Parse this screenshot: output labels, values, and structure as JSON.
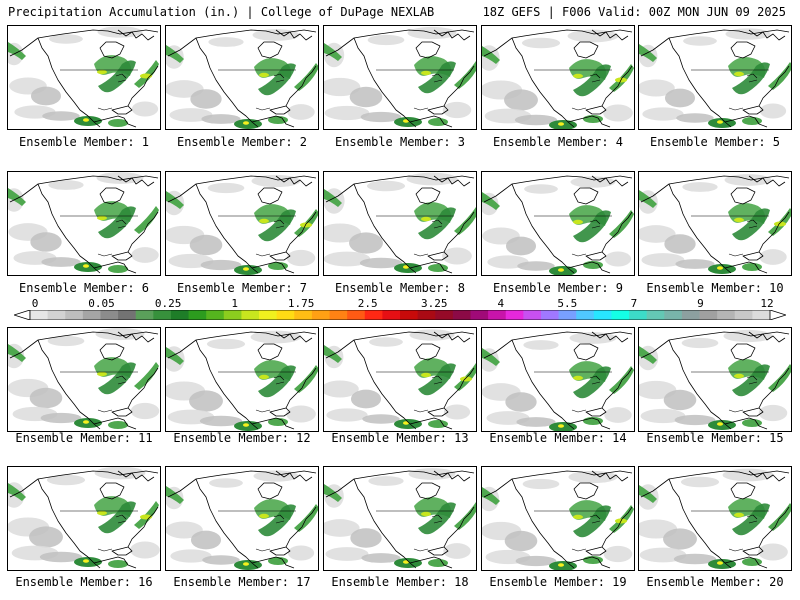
{
  "header": {
    "left_title": "Precipitation Accumulation (in.) | College of DuPage NEXLAB",
    "right_title": "18Z GEFS | F006 Valid: 00Z MON JUN 09 2025"
  },
  "members": [
    {
      "caption": "Ensemble Member: 1"
    },
    {
      "caption": "Ensemble Member: 2"
    },
    {
      "caption": "Ensemble Member: 3"
    },
    {
      "caption": "Ensemble Member: 4"
    },
    {
      "caption": "Ensemble Member: 5"
    },
    {
      "caption": "Ensemble Member: 6"
    },
    {
      "caption": "Ensemble Member: 7"
    },
    {
      "caption": "Ensemble Member: 8"
    },
    {
      "caption": "Ensemble Member: 9"
    },
    {
      "caption": "Ensemble Member: 10"
    },
    {
      "caption": "Ensemble Member: 11"
    },
    {
      "caption": "Ensemble Member: 12"
    },
    {
      "caption": "Ensemble Member: 13"
    },
    {
      "caption": "Ensemble Member: 14"
    },
    {
      "caption": "Ensemble Member: 15"
    },
    {
      "caption": "Ensemble Member: 16"
    },
    {
      "caption": "Ensemble Member: 17"
    },
    {
      "caption": "Ensemble Member: 18"
    },
    {
      "caption": "Ensemble Member: 19"
    },
    {
      "caption": "Ensemble Member: 20"
    }
  ],
  "colorbar": {
    "labels": [
      "0",
      "0.05",
      "0.25",
      "1",
      "1.75",
      "2.5",
      "3.25",
      "4",
      "5.5",
      "7",
      "9",
      "12"
    ],
    "colors": [
      "#e6e6e6",
      "#d2d2d2",
      "#bebebe",
      "#a5a5a5",
      "#8c8c8c",
      "#737373",
      "#5aa05a",
      "#37913c",
      "#1e7d28",
      "#2c9c1e",
      "#55b41e",
      "#8ccd1e",
      "#c8e61e",
      "#f0f01e",
      "#ffdc14",
      "#ffbe14",
      "#ffa014",
      "#ff8214",
      "#ff5a14",
      "#ff2814",
      "#e60f14",
      "#c80a0a",
      "#aa0a14",
      "#960a28",
      "#8c0a46",
      "#a00a78",
      "#c814aa",
      "#e628dc",
      "#c850f0",
      "#a078ff",
      "#78a0ff",
      "#50c8ff",
      "#28e6ff",
      "#14ffe6",
      "#3cdcc8",
      "#64c8b4",
      "#78b4aa",
      "#8ca0a0",
      "#a0a0a0",
      "#b4b4b4",
      "#c8c8c8",
      "#dcdcdc"
    ]
  },
  "map_colors": {
    "light_gray": "#dcdcdc",
    "mid_gray": "#bfbfbf",
    "green": "#4fa84f",
    "dark_green": "#2e8b3a",
    "yellow_green": "#c8e61e",
    "yellow": "#f5f01e",
    "coast": "#000000"
  }
}
